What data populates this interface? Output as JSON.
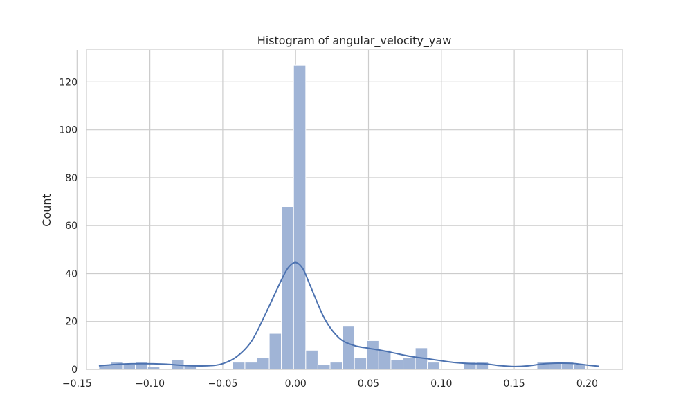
{
  "chart_data": {
    "type": "histogram",
    "title": "Histogram of angular_velocity_yaw",
    "xlabel": "",
    "ylabel": "Count",
    "xlim": [
      -0.1435,
      0.2245
    ],
    "ylim": [
      0,
      133.4
    ],
    "x_ticks": [
      -0.15,
      -0.1,
      -0.05,
      0.0,
      0.05,
      0.1,
      0.15,
      0.2
    ],
    "x_tick_labels": [
      "−0.15",
      "−0.10",
      "−0.05",
      "0.00",
      "0.05",
      "0.10",
      "0.15",
      "0.20"
    ],
    "y_ticks": [
      0,
      20,
      40,
      60,
      80,
      100,
      120
    ],
    "y_tick_labels": [
      "0",
      "20",
      "40",
      "60",
      "80",
      "100",
      "120"
    ],
    "grid": true,
    "bar_color": "#a0b4d6",
    "bar_edge_color": "#ffffff",
    "kde_color": "#4c72b0",
    "bins": {
      "start": -0.135,
      "width": 0.00835,
      "counts": [
        2,
        3,
        2,
        3,
        1,
        0,
        4,
        2,
        0,
        0,
        0,
        3,
        3,
        5,
        15,
        68,
        127,
        8,
        2,
        3,
        18,
        5,
        12,
        8,
        4,
        5,
        9,
        3,
        0,
        0,
        3,
        3,
        0,
        0,
        0,
        0,
        3,
        3,
        3,
        2
      ]
    },
    "kde": {
      "x": [
        -0.135,
        -0.12,
        -0.105,
        -0.09,
        -0.075,
        -0.06,
        -0.05,
        -0.04,
        -0.03,
        -0.02,
        -0.01,
        -0.005,
        0.0,
        0.005,
        0.01,
        0.02,
        0.03,
        0.04,
        0.05,
        0.06,
        0.07,
        0.08,
        0.09,
        0.1,
        0.11,
        0.12,
        0.13,
        0.14,
        0.15,
        0.16,
        0.17,
        0.18,
        0.19,
        0.2,
        0.208
      ],
      "y": [
        1.5,
        2.2,
        2.4,
        2.2,
        1.6,
        1.5,
        2.4,
        5.5,
        12.0,
        24.0,
        37.0,
        42.5,
        44.6,
        42.0,
        35.0,
        21.0,
        13.0,
        10.0,
        8.8,
        7.8,
        6.5,
        5.3,
        4.5,
        3.6,
        2.8,
        2.4,
        2.3,
        1.6,
        1.2,
        1.5,
        2.3,
        2.6,
        2.5,
        1.8,
        1.3
      ]
    }
  }
}
